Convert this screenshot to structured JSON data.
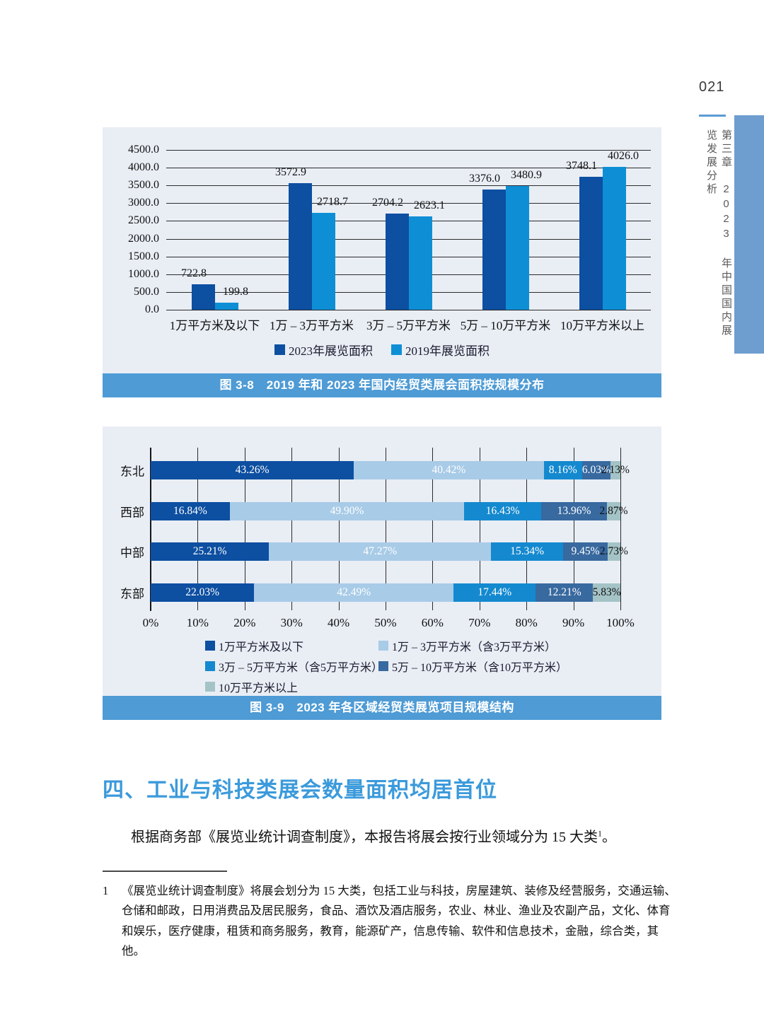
{
  "page": {
    "number": "021",
    "chapter_sidebar": "第三章　2023 年中国国内展览发展分析"
  },
  "colors": {
    "accent_rule": "#5b9bd5",
    "sidebar_bar": "#6d9ecf",
    "panel_background": "#e9eef5",
    "caption_background": "#4e9bd5",
    "heading_blue": "#3b9adb",
    "bar_2023": "#0d4fa1",
    "bar_2019": "#0e8fd5",
    "stack_colors": [
      "#0d4fa1",
      "#a8cbe7",
      "#1489cf",
      "#38699f",
      "#a4c3c6"
    ]
  },
  "chart_data": [
    {
      "type": "bar",
      "caption": "图 3-8　2019 年和 2023 年国内经贸类展会面积按规模分布",
      "categories": [
        "1万平方米及以下",
        "1万 – 3万平方米",
        "3万 – 5万平方米",
        "5万 – 10万平方米",
        "10万平方米以上"
      ],
      "series": [
        {
          "name": "2023年展览面积",
          "color": "#0d4fa1",
          "values": [
            722.8,
            3572.9,
            2704.2,
            3376.0,
            3748.1
          ]
        },
        {
          "name": "2019年展览面积",
          "color": "#0e8fd5",
          "values": [
            199.8,
            2718.7,
            2623.1,
            3480.9,
            4026.0
          ]
        }
      ],
      "ylim": [
        0,
        4500
      ],
      "ytick_step": 500,
      "grid": true,
      "legend_position": "bottom"
    },
    {
      "type": "bar",
      "orientation": "horizontal-stacked",
      "caption": "图 3-9　2023 年各区域经贸类展览项目规模结构",
      "categories": [
        "东北",
        "西部",
        "中部",
        "东部"
      ],
      "series": [
        {
          "name": "1万平方米及以下",
          "color": "#0d4fa1",
          "values": [
            43.26,
            16.84,
            25.21,
            22.03
          ]
        },
        {
          "name": "1万 – 3万平方米（含3万平方米）",
          "color": "#a8cbe7",
          "values": [
            40.42,
            49.9,
            47.27,
            42.49
          ]
        },
        {
          "name": "3万 – 5万平方米（含5万平方米）",
          "color": "#1489cf",
          "values": [
            8.16,
            16.43,
            15.34,
            17.44
          ]
        },
        {
          "name": "5万 – 10万平方米（含10万平方米）",
          "color": "#38699f",
          "values": [
            6.03,
            13.96,
            9.45,
            12.21
          ]
        },
        {
          "name": "10万平方米以上",
          "color": "#a4c3c6",
          "values": [
            2.13,
            2.87,
            2.73,
            5.83
          ]
        }
      ],
      "xlim": [
        0,
        100
      ],
      "xtick_step": 10,
      "grid": true,
      "legend_position": "bottom"
    }
  ],
  "section": {
    "heading": "四、工业与科技类展会数量面积均居首位",
    "paragraph": "根据商务部《展览业统计调查制度》，本报告将展会按行业领域分为 15 大类",
    "footnote_ref": "1",
    "paragraph_end": "。"
  },
  "footnote": {
    "number": "1",
    "text": "《展览业统计调查制度》将展会划分为 15 大类，包括工业与科技，房屋建筑、装修及经营服务，交通运输、仓储和邮政，日用消费品及居民服务，食品、酒饮及酒店服务，农业、林业、渔业及农副产品，文化、体育和娱乐，医疗健康，租赁和商务服务，教育，能源矿产，信息传输、软件和信息技术，金融，综合类，其他。"
  }
}
